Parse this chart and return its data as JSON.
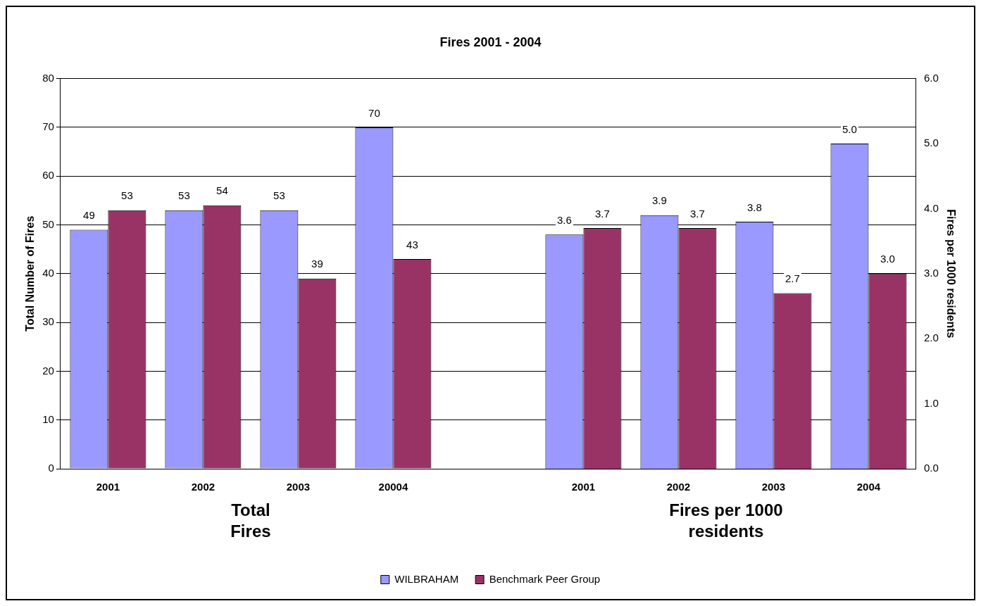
{
  "chart_data": {
    "type": "bar",
    "title": "Fires 2001 - 2004",
    "ylabel": "Total Number of Fires",
    "y2label": "Fires per 1000 residents",
    "categories": [
      "2001",
      "2002",
      "2003",
      "20004",
      null,
      "2001",
      "2002",
      "2003",
      "2004"
    ],
    "series": [
      {
        "name": "WILBRAHAM",
        "color": "#9999ff",
        "values": [
          49,
          53,
          53,
          70,
          null,
          null,
          null,
          null,
          null
        ],
        "value_labels": [
          "49",
          "53",
          "53",
          "70",
          null,
          null,
          null,
          null,
          null
        ]
      },
      {
        "name": "Benchmark Peer Group",
        "color": "#993366",
        "values": [
          53,
          54,
          39,
          43,
          null,
          null,
          null,
          null,
          null
        ],
        "value_labels": [
          "53",
          "54",
          "39",
          "43",
          null,
          null,
          null,
          null,
          null
        ]
      },
      {
        "color": "#9999ff",
        "axis": "y2",
        "values": [
          null,
          null,
          null,
          null,
          null,
          3.6,
          3.9,
          3.8,
          5.0
        ],
        "value_labels": [
          null,
          null,
          null,
          null,
          null,
          "3.6",
          "3.9",
          "3.8",
          "5.0"
        ]
      },
      {
        "color": "#993366",
        "axis": "y2",
        "values": [
          null,
          null,
          null,
          null,
          null,
          3.7,
          3.7,
          2.7,
          3.0
        ],
        "value_labels": [
          null,
          null,
          null,
          null,
          null,
          "3.7",
          "3.7",
          "2.7",
          "3.0"
        ]
      }
    ],
    "ylim": [
      0,
      80
    ],
    "yticks": [
      0,
      10,
      20,
      30,
      40,
      50,
      60,
      70,
      80
    ],
    "y2lim": [
      0,
      6
    ],
    "y2ticks": [
      {
        "value": 0,
        "label": "0.0"
      },
      {
        "value": 1,
        "label": "1.0"
      },
      {
        "value": 2,
        "label": "2.0"
      },
      {
        "value": 3,
        "label": "3.0"
      },
      {
        "value": 4,
        "label": "4.0"
      },
      {
        "value": 5,
        "label": "5.0"
      },
      {
        "value": 6,
        "label": "6.0"
      }
    ],
    "annotations": [
      "Total\nFires",
      "Fires per 1000\nresidents"
    ],
    "grid": "y",
    "legend": "bottom"
  }
}
